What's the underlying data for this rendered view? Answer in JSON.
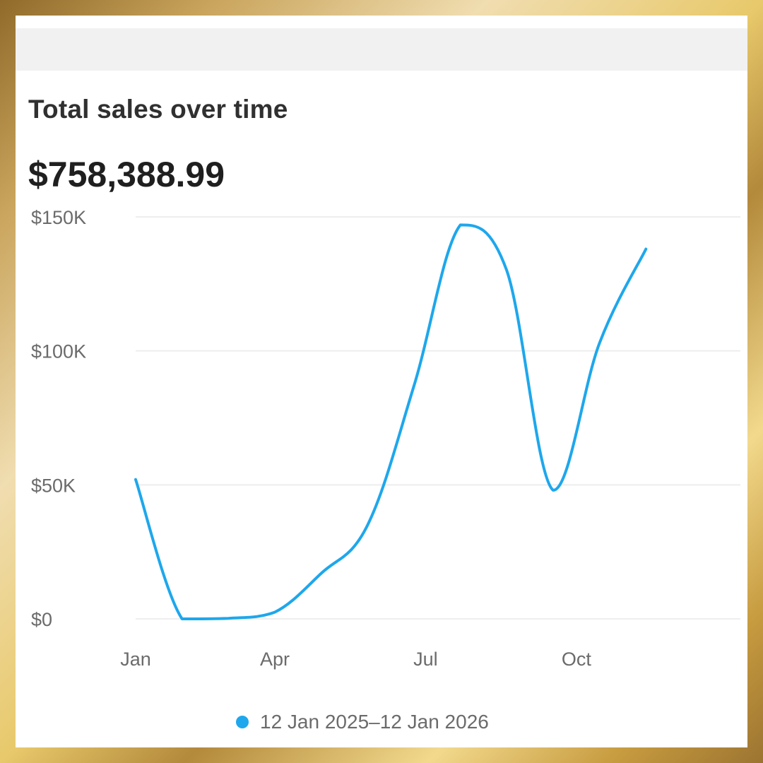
{
  "card": {
    "title": "Total sales over time",
    "total": "$758,388.99"
  },
  "colors": {
    "line": "#1ea7ec",
    "grid": "#eeeeee",
    "axis_text": "#6b6b6b",
    "frame": "#c9a45c"
  },
  "chart_data": {
    "type": "line",
    "title": "Total sales over time",
    "xlabel": "",
    "ylabel": "",
    "ylim": [
      0,
      150000
    ],
    "y_ticks": [
      {
        "value": 0,
        "label": "$0"
      },
      {
        "value": 50000,
        "label": "$50K"
      },
      {
        "value": 100000,
        "label": "$100K"
      },
      {
        "value": 150000,
        "label": "$150K"
      }
    ],
    "x_ticks": [
      {
        "date": "2025-01-12",
        "label": "Jan"
      },
      {
        "date": "2025-04-06",
        "label": "Apr"
      },
      {
        "date": "2025-07-06",
        "label": "Jul"
      },
      {
        "date": "2025-10-05",
        "label": "Oct"
      }
    ],
    "xlim": [
      "2025-01-12",
      "2026-01-12"
    ],
    "grid": true,
    "legend_position": "bottom-center",
    "series": [
      {
        "name": "12 Jan 2025–12 Jan 2026",
        "points": [
          {
            "x": "2025-01-12",
            "y": 52000
          },
          {
            "x": "2025-02-09",
            "y": 0
          },
          {
            "x": "2025-03-09",
            "y": 200
          },
          {
            "x": "2025-04-06",
            "y": 2500
          },
          {
            "x": "2025-05-04",
            "y": 17000
          },
          {
            "x": "2025-06-01",
            "y": 35000
          },
          {
            "x": "2025-06-29",
            "y": 87000
          },
          {
            "x": "2025-07-27",
            "y": 147000
          },
          {
            "x": "2025-08-24",
            "y": 130000
          },
          {
            "x": "2025-09-21",
            "y": 48000
          },
          {
            "x": "2025-10-19",
            "y": 103000
          },
          {
            "x": "2025-11-16",
            "y": 138000
          }
        ]
      }
    ]
  }
}
